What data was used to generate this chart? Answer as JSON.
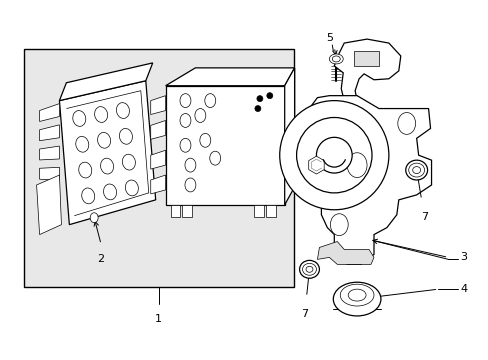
{
  "bg_color": "#ffffff",
  "line_color": "#000000",
  "box_bg": "#e8e8e8",
  "part_bg": "#ffffff",
  "lw_main": 0.9,
  "lw_thin": 0.5,
  "label_fontsize": 8
}
